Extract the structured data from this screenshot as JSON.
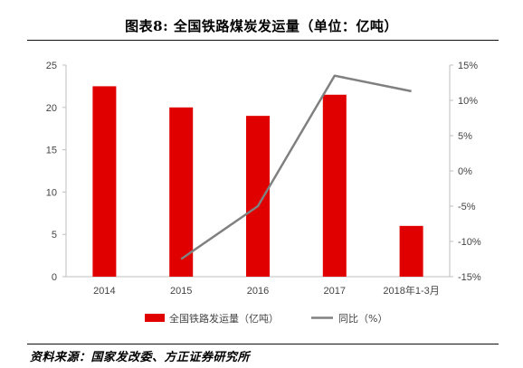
{
  "title": "图表8:  全国铁路煤炭发运量（单位：亿吨）",
  "source": "资料来源：国家发改委、方正证券研究所",
  "colors": {
    "bar": "#e00000",
    "line": "#808080",
    "axis": "#bfbfbf"
  },
  "chart_data": {
    "type": "bar",
    "categories": [
      "2014",
      "2015",
      "2016",
      "2017",
      "2018年1-3月"
    ],
    "series": [
      {
        "name": "全国铁路发运量（亿吨）",
        "type": "bar",
        "axis": "left",
        "values": [
          22.5,
          20.0,
          19.0,
          21.5,
          6.0
        ]
      },
      {
        "name": "同比（%）",
        "type": "line",
        "axis": "right",
        "values": [
          null,
          -12.5,
          -5.0,
          13.5,
          11.3
        ]
      }
    ],
    "y_left": {
      "min": 0,
      "max": 25,
      "ticks": [
        "0",
        "5",
        "10",
        "15",
        "20",
        "25"
      ]
    },
    "y_right": {
      "min": -15,
      "max": 15,
      "ticks": [
        "-15%",
        "-10%",
        "-5%",
        "0%",
        "5%",
        "10%",
        "15%"
      ]
    },
    "grid": false,
    "legend_position": "bottom"
  }
}
